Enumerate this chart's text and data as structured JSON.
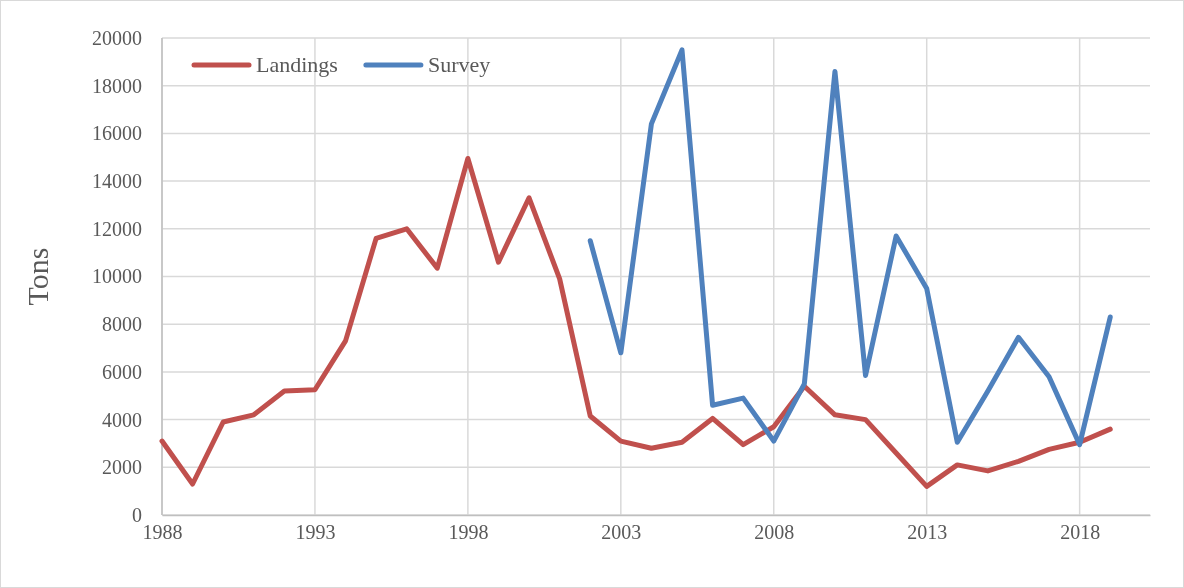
{
  "chart_data": {
    "type": "line",
    "ylabel": "Tons",
    "xlim": [
      1988,
      2020.3
    ],
    "xticks": [
      1988,
      1993,
      1998,
      2003,
      2008,
      2013,
      2018
    ],
    "ylim": [
      0,
      20000
    ],
    "yticks": [
      0,
      2000,
      4000,
      6000,
      8000,
      10000,
      12000,
      14000,
      16000,
      18000,
      20000
    ],
    "grid": true,
    "legend": "top left",
    "marker": "none",
    "line_style": "solid",
    "series": [
      {
        "name": "Landings",
        "color": "#c0504d",
        "x": [
          1988,
          1989,
          1990,
          1991,
          1992,
          1993,
          1994,
          1995,
          1996,
          1997,
          1998,
          1999,
          2000,
          2001,
          2002,
          2003,
          2004,
          2005,
          2006,
          2007,
          2008,
          2009,
          2010,
          2011,
          2012,
          2013,
          2014,
          2015,
          2016,
          2017,
          2018,
          2019
        ],
        "values": [
          3100,
          1300,
          3900,
          4200,
          5200,
          5250,
          7300,
          11600,
          12000,
          10350,
          14950,
          10600,
          13300,
          9900,
          4150,
          3100,
          2800,
          3050,
          4050,
          2950,
          3700,
          5400,
          4200,
          4000,
          2600,
          1200,
          2100,
          1850,
          2250,
          2750,
          3050,
          3600
        ]
      },
      {
        "name": "Survey",
        "color": "#4f81bd",
        "x": [
          2002,
          2003,
          2004,
          2005,
          2006,
          2007,
          2008,
          2009,
          2010,
          2011,
          2012,
          2013,
          2014,
          2015,
          2016,
          2017,
          2018,
          2019
        ],
        "values": [
          11500,
          6800,
          16400,
          19500,
          4600,
          4900,
          3100,
          5500,
          18600,
          5850,
          11700,
          9500,
          3050,
          5200,
          7450,
          5800,
          2950,
          8300
        ]
      }
    ]
  }
}
